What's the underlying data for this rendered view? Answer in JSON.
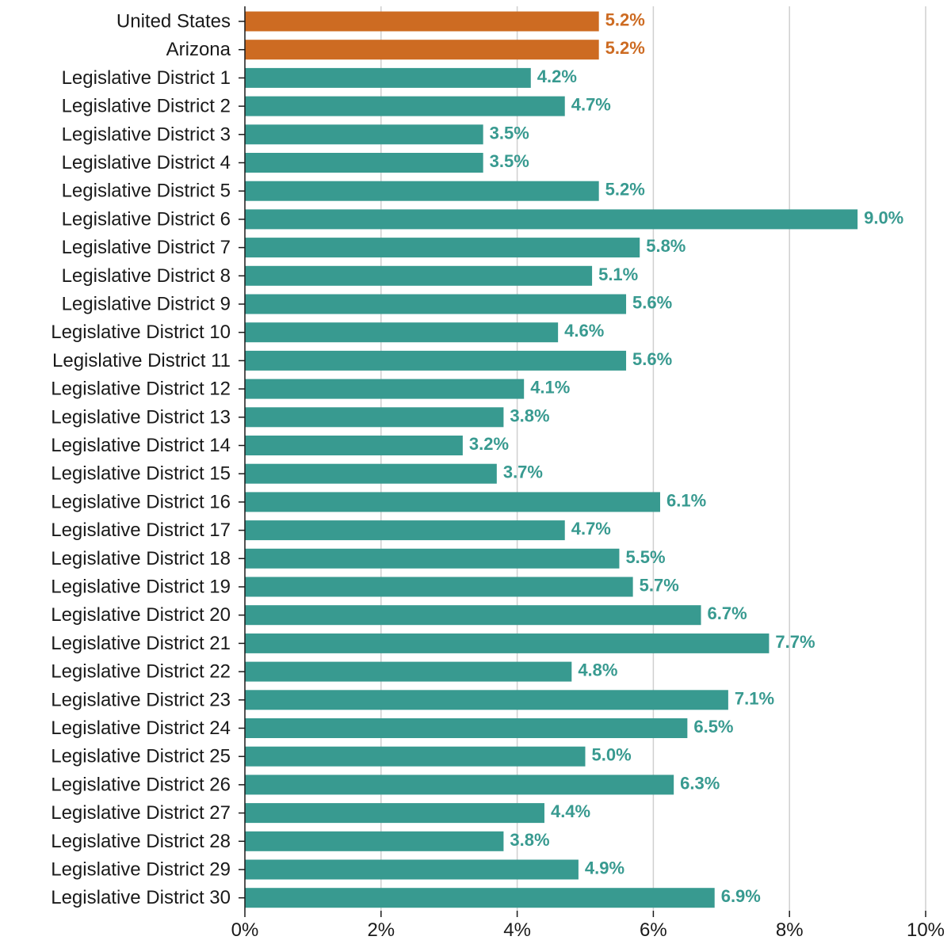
{
  "colors": {
    "highlight": "#CD6B22",
    "district": "#389A90",
    "grid": "#cfcfcf",
    "text": "#1a1a1a"
  },
  "chart_data": {
    "type": "bar",
    "orientation": "horizontal",
    "categories": [
      "United States",
      "Arizona",
      "Legislative District 1",
      "Legislative District 2",
      "Legislative District 3",
      "Legislative District 4",
      "Legislative District 5",
      "Legislative District 6",
      "Legislative District 7",
      "Legislative District 8",
      "Legislative District 9",
      "Legislative District 10",
      "Legislative District 11",
      "Legislative District 12",
      "Legislative District 13",
      "Legislative District 14",
      "Legislative District 15",
      "Legislative District 16",
      "Legislative District 17",
      "Legislative District 18",
      "Legislative District 19",
      "Legislative District 20",
      "Legislative District 21",
      "Legislative District 22",
      "Legislative District 23",
      "Legislative District 24",
      "Legislative District 25",
      "Legislative District 26",
      "Legislative District 27",
      "Legislative District 28",
      "Legislative District 29",
      "Legislative District 30"
    ],
    "values": [
      5.2,
      5.2,
      4.2,
      4.7,
      3.5,
      3.5,
      5.2,
      9.0,
      5.8,
      5.1,
      5.6,
      4.6,
      5.6,
      4.1,
      3.8,
      3.2,
      3.7,
      6.1,
      4.7,
      5.5,
      5.7,
      6.7,
      7.7,
      4.8,
      7.1,
      6.5,
      5.0,
      6.3,
      4.4,
      3.8,
      4.9,
      6.9
    ],
    "value_labels": [
      "5.2%",
      "5.2%",
      "4.2%",
      "4.7%",
      "3.5%",
      "3.5%",
      "5.2%",
      "9.0%",
      "5.8%",
      "5.1%",
      "5.6%",
      "4.6%",
      "5.6%",
      "4.1%",
      "3.8%",
      "3.2%",
      "3.7%",
      "6.1%",
      "4.7%",
      "5.5%",
      "5.7%",
      "6.7%",
      "7.7%",
      "4.8%",
      "7.1%",
      "6.5%",
      "5.0%",
      "6.3%",
      "4.4%",
      "3.8%",
      "4.9%",
      "6.9%"
    ],
    "highlighted": [
      "United States",
      "Arizona"
    ],
    "xlim": [
      0,
      10
    ],
    "xticks": [
      0,
      2,
      4,
      6,
      8,
      10
    ],
    "xtick_labels": [
      "0%",
      "2%",
      "4%",
      "6%",
      "8%",
      "10%"
    ],
    "grid": "vertical",
    "title": "",
    "xlabel": "",
    "ylabel": ""
  }
}
